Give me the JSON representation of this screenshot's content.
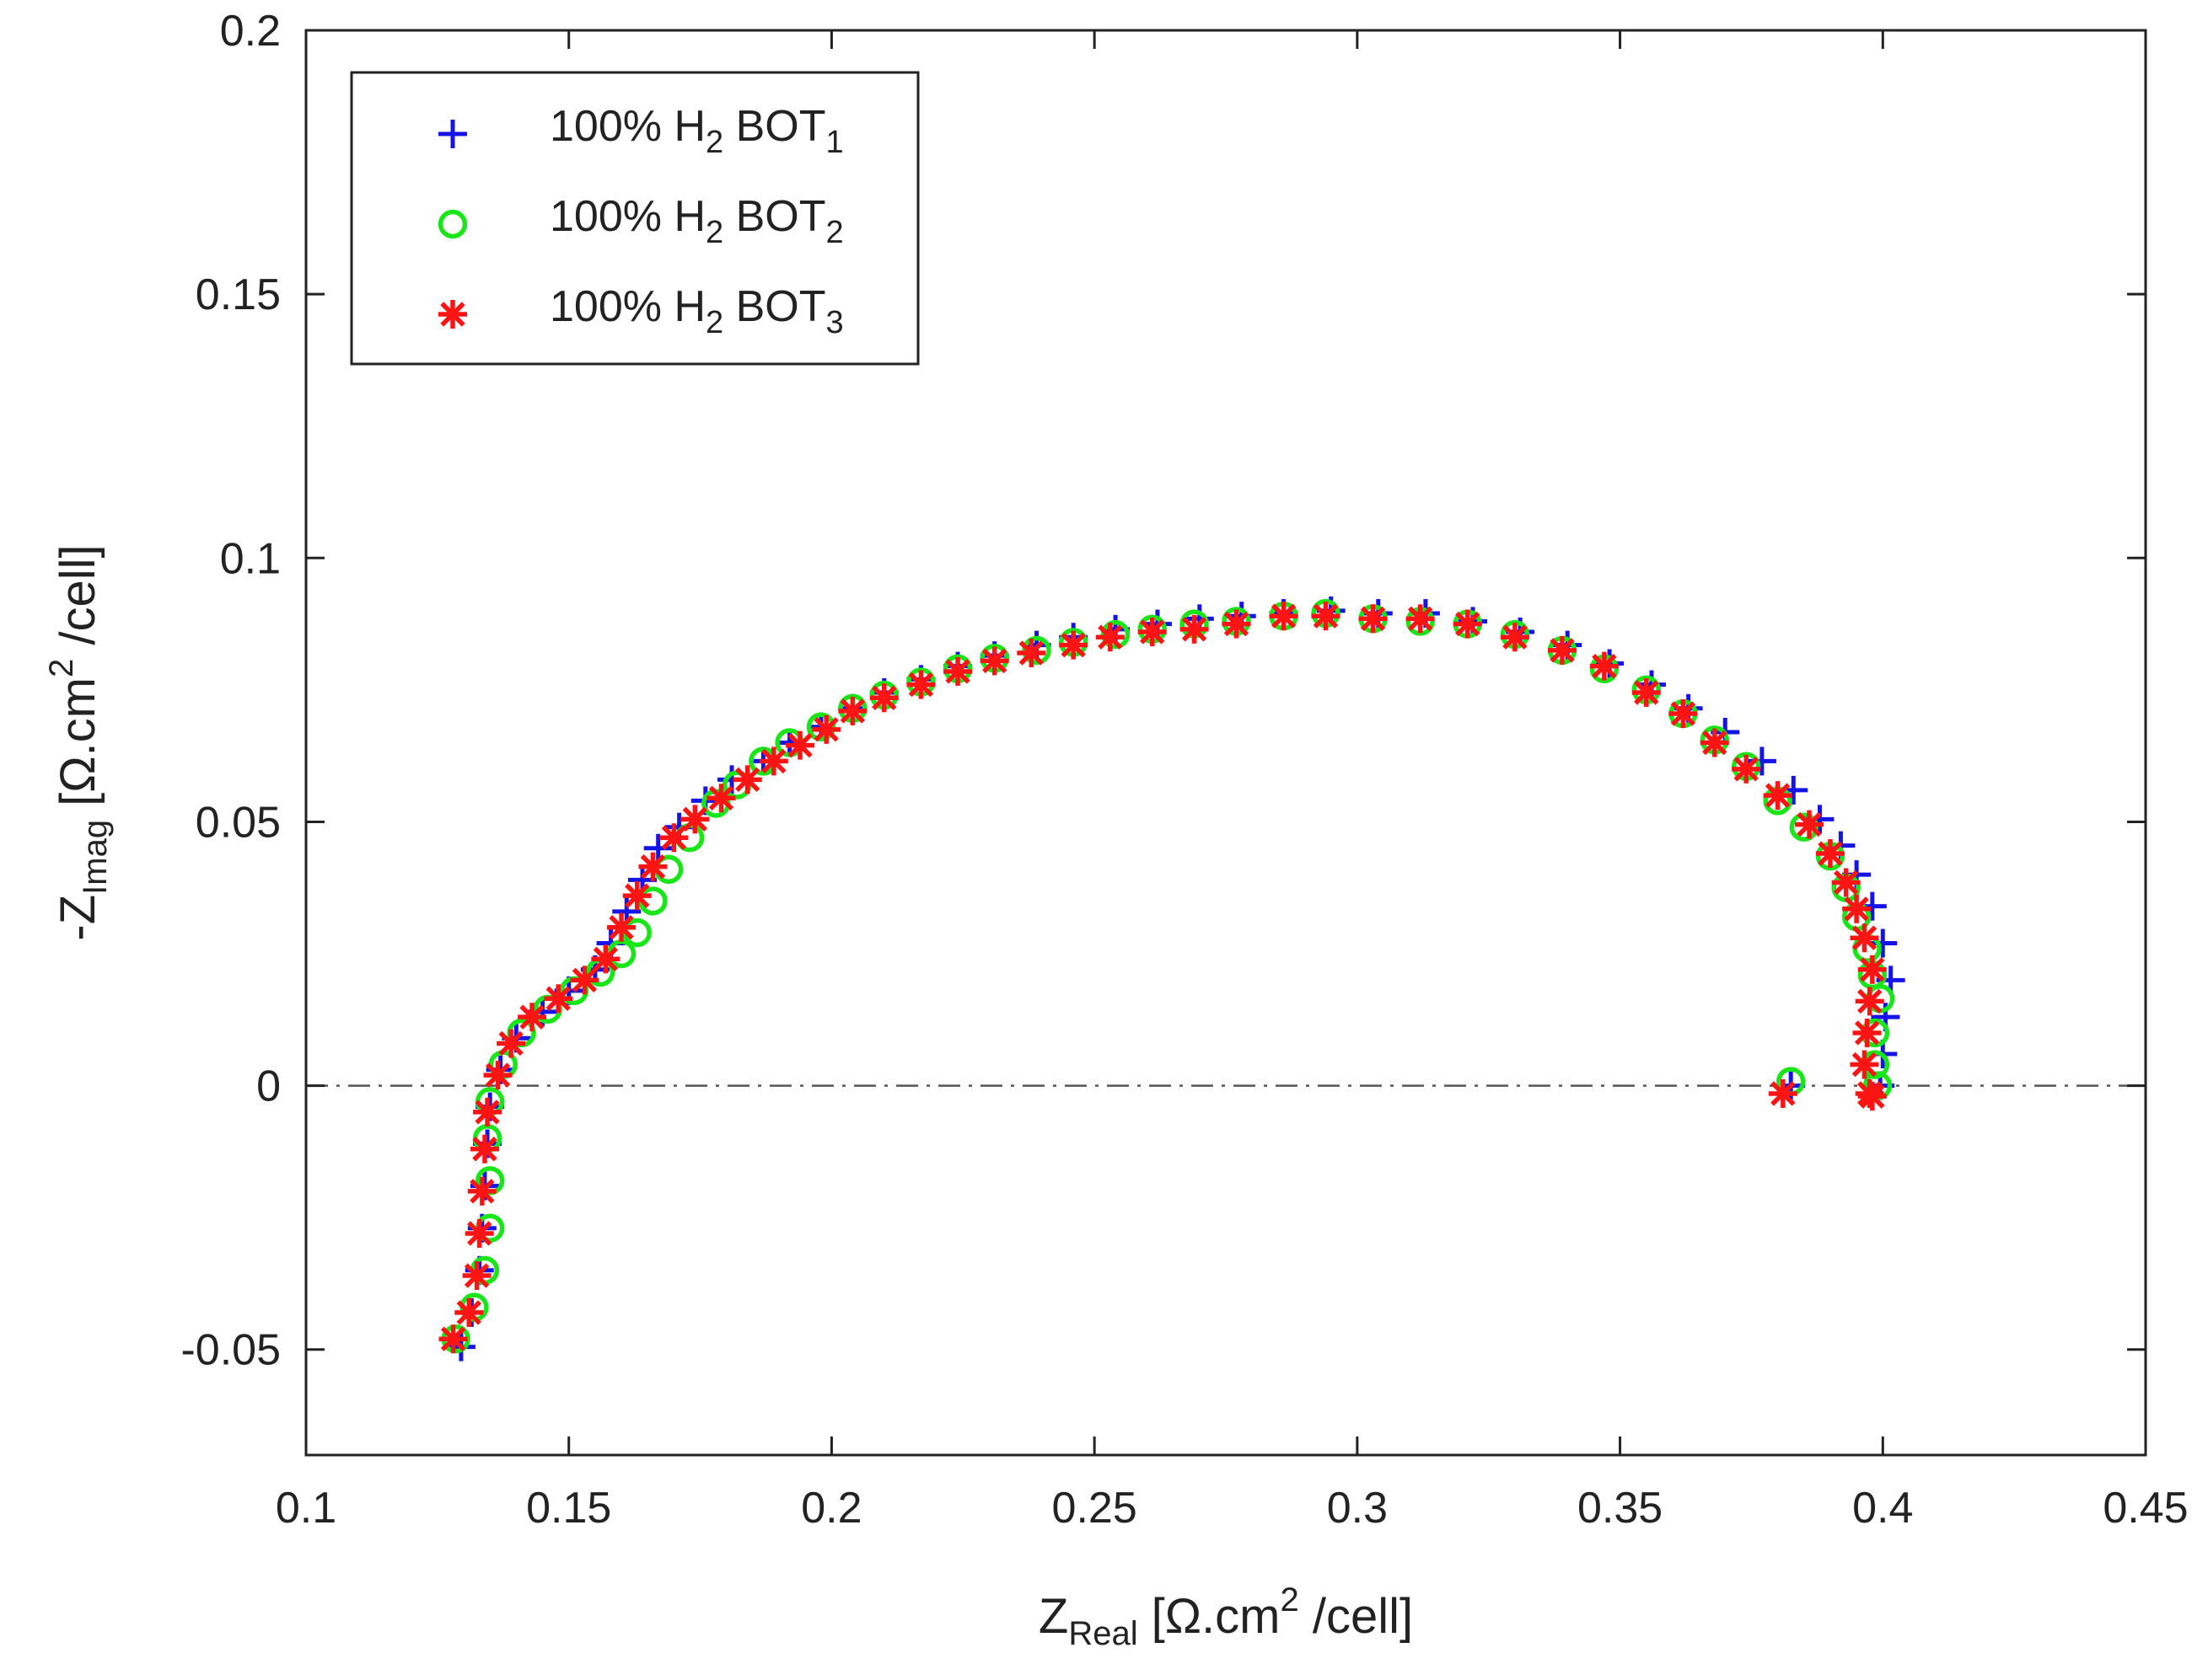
{
  "chart_data": {
    "type": "scatter",
    "title": "",
    "xlabel": {
      "main": "Z",
      "sub": "Real",
      "unit_pre": "[Ω.cm",
      "unit_sup": "2",
      "unit_post": " /cell]"
    },
    "ylabel": {
      "main": "-Z",
      "sub": "Imag",
      "unit_pre": "[Ω.cm",
      "unit_sup": "2",
      "unit_post": " /cell]"
    },
    "xlim": [
      0.1,
      0.45
    ],
    "ylim": [
      -0.07,
      0.2
    ],
    "xticks": [
      0.1,
      0.15,
      0.2,
      0.25,
      0.3,
      0.35,
      0.4,
      0.45
    ],
    "xtick_labels": [
      "0.1",
      "0.15",
      "0.2",
      "0.25",
      "0.3",
      "0.35",
      "0.4",
      "0.45"
    ],
    "yticks": [
      -0.05,
      0,
      0.05,
      0.1,
      0.15,
      0.2
    ],
    "ytick_labels": [
      "-0.05",
      "0",
      "0.05",
      "0.1",
      "0.15",
      "0.2"
    ],
    "zero_line": {
      "y": 0,
      "style": "dash-dot",
      "color": "#555555"
    },
    "legend_position": "top-left",
    "series": [
      {
        "name": "100% H2 BOT1",
        "label_parts": {
          "pre": "100% H",
          "sub1": "2",
          "mid": " BOT",
          "sub2": "1"
        },
        "marker": "plus",
        "color": "#1414e6",
        "points": [
          [
            0.1295,
            -0.0495
          ],
          [
            0.1315,
            -0.043
          ],
          [
            0.133,
            -0.035
          ],
          [
            0.1335,
            -0.027
          ],
          [
            0.134,
            -0.019
          ],
          [
            0.1345,
            -0.011
          ],
          [
            0.135,
            -0.004
          ],
          [
            0.137,
            0.003
          ],
          [
            0.14,
            0.009
          ],
          [
            0.145,
            0.014
          ],
          [
            0.15,
            0.018
          ],
          [
            0.155,
            0.022
          ],
          [
            0.158,
            0.027
          ],
          [
            0.161,
            0.033
          ],
          [
            0.164,
            0.039
          ],
          [
            0.167,
            0.045
          ],
          [
            0.171,
            0.049
          ],
          [
            0.176,
            0.054
          ],
          [
            0.181,
            0.058
          ],
          [
            0.187,
            0.0615
          ],
          [
            0.192,
            0.065
          ],
          [
            0.198,
            0.068
          ],
          [
            0.204,
            0.0715
          ],
          [
            0.21,
            0.0745
          ],
          [
            0.217,
            0.077
          ],
          [
            0.224,
            0.0795
          ],
          [
            0.231,
            0.0815
          ],
          [
            0.239,
            0.0835
          ],
          [
            0.246,
            0.085
          ],
          [
            0.254,
            0.0865
          ],
          [
            0.262,
            0.0875
          ],
          [
            0.27,
            0.0885
          ],
          [
            0.278,
            0.089
          ],
          [
            0.286,
            0.0895
          ],
          [
            0.295,
            0.09
          ],
          [
            0.304,
            0.0895
          ],
          [
            0.313,
            0.0895
          ],
          [
            0.322,
            0.088
          ],
          [
            0.331,
            0.086
          ],
          [
            0.34,
            0.0835
          ],
          [
            0.348,
            0.08
          ],
          [
            0.356,
            0.076
          ],
          [
            0.363,
            0.0715
          ],
          [
            0.37,
            0.067
          ],
          [
            0.377,
            0.0615
          ],
          [
            0.383,
            0.056
          ],
          [
            0.388,
            0.0505
          ],
          [
            0.392,
            0.0455
          ],
          [
            0.395,
            0.04
          ],
          [
            0.398,
            0.034
          ],
          [
            0.4,
            0.027
          ],
          [
            0.4015,
            0.02
          ],
          [
            0.4005,
            0.013
          ],
          [
            0.4,
            0.006
          ],
          [
            0.3995,
            0.0
          ],
          [
            0.398,
            -0.002
          ],
          [
            0.3825,
            0.0
          ]
        ]
      },
      {
        "name": "100% H2 BOT2",
        "label_parts": {
          "pre": "100% H",
          "sub1": "2",
          "mid": " BOT",
          "sub2": "2"
        },
        "marker": "circle",
        "color": "#19e619",
        "points": [
          [
            0.1285,
            -0.048
          ],
          [
            0.132,
            -0.042
          ],
          [
            0.134,
            -0.035
          ],
          [
            0.135,
            -0.027
          ],
          [
            0.135,
            -0.018
          ],
          [
            0.1345,
            -0.01
          ],
          [
            0.135,
            -0.003
          ],
          [
            0.1375,
            0.004
          ],
          [
            0.141,
            0.01
          ],
          [
            0.146,
            0.0145
          ],
          [
            0.151,
            0.018
          ],
          [
            0.156,
            0.0215
          ],
          [
            0.16,
            0.025
          ],
          [
            0.163,
            0.029
          ],
          [
            0.166,
            0.035
          ],
          [
            0.169,
            0.041
          ],
          [
            0.173,
            0.047
          ],
          [
            0.178,
            0.0535
          ],
          [
            0.182,
            0.057
          ],
          [
            0.187,
            0.0615
          ],
          [
            0.192,
            0.065
          ],
          [
            0.198,
            0.068
          ],
          [
            0.204,
            0.0715
          ],
          [
            0.21,
            0.074
          ],
          [
            0.217,
            0.0765
          ],
          [
            0.224,
            0.079
          ],
          [
            0.231,
            0.081
          ],
          [
            0.239,
            0.0825
          ],
          [
            0.246,
            0.084
          ],
          [
            0.254,
            0.0855
          ],
          [
            0.261,
            0.0865
          ],
          [
            0.269,
            0.0875
          ],
          [
            0.277,
            0.088
          ],
          [
            0.286,
            0.089
          ],
          [
            0.294,
            0.0895
          ],
          [
            0.303,
            0.0885
          ],
          [
            0.312,
            0.088
          ],
          [
            0.321,
            0.0875
          ],
          [
            0.33,
            0.0855
          ],
          [
            0.339,
            0.0825
          ],
          [
            0.347,
            0.079
          ],
          [
            0.355,
            0.075
          ],
          [
            0.362,
            0.0705
          ],
          [
            0.368,
            0.0655
          ],
          [
            0.374,
            0.0605
          ],
          [
            0.38,
            0.054
          ],
          [
            0.385,
            0.049
          ],
          [
            0.39,
            0.0435
          ],
          [
            0.393,
            0.0375
          ],
          [
            0.395,
            0.032
          ],
          [
            0.397,
            0.026
          ],
          [
            0.398,
            0.021
          ],
          [
            0.3995,
            0.0165
          ],
          [
            0.3985,
            0.01
          ],
          [
            0.3985,
            0.004
          ],
          [
            0.399,
            0.0
          ],
          [
            0.3825,
            0.0008
          ]
        ]
      },
      {
        "name": "100% H2 BOT3",
        "label_parts": {
          "pre": "100% H",
          "sub1": "2",
          "mid": " BOT",
          "sub2": "3"
        },
        "marker": "asterisk",
        "color": "#ff1414",
        "points": [
          [
            0.128,
            -0.048
          ],
          [
            0.131,
            -0.043
          ],
          [
            0.1325,
            -0.036
          ],
          [
            0.133,
            -0.028
          ],
          [
            0.1335,
            -0.02
          ],
          [
            0.134,
            -0.012
          ],
          [
            0.1345,
            -0.005
          ],
          [
            0.1365,
            0.002
          ],
          [
            0.139,
            0.008
          ],
          [
            0.143,
            0.013
          ],
          [
            0.148,
            0.0165
          ],
          [
            0.153,
            0.02
          ],
          [
            0.157,
            0.024
          ],
          [
            0.16,
            0.03
          ],
          [
            0.163,
            0.036
          ],
          [
            0.166,
            0.0415
          ],
          [
            0.17,
            0.047
          ],
          [
            0.174,
            0.0505
          ],
          [
            0.179,
            0.0545
          ],
          [
            0.184,
            0.058
          ],
          [
            0.189,
            0.0615
          ],
          [
            0.194,
            0.0645
          ],
          [
            0.199,
            0.0675
          ],
          [
            0.204,
            0.071
          ],
          [
            0.21,
            0.0735
          ],
          [
            0.217,
            0.076
          ],
          [
            0.224,
            0.0785
          ],
          [
            0.231,
            0.0805
          ],
          [
            0.238,
            0.082
          ],
          [
            0.246,
            0.0835
          ],
          [
            0.253,
            0.085
          ],
          [
            0.261,
            0.086
          ],
          [
            0.269,
            0.0865
          ],
          [
            0.277,
            0.0875
          ],
          [
            0.286,
            0.089
          ],
          [
            0.294,
            0.089
          ],
          [
            0.303,
            0.0885
          ],
          [
            0.312,
            0.0885
          ],
          [
            0.321,
            0.0875
          ],
          [
            0.33,
            0.085
          ],
          [
            0.339,
            0.0825
          ],
          [
            0.347,
            0.0795
          ],
          [
            0.355,
            0.0745
          ],
          [
            0.362,
            0.0705
          ],
          [
            0.368,
            0.065
          ],
          [
            0.374,
            0.06
          ],
          [
            0.38,
            0.055
          ],
          [
            0.386,
            0.0495
          ],
          [
            0.39,
            0.044
          ],
          [
            0.393,
            0.0385
          ],
          [
            0.395,
            0.0335
          ],
          [
            0.3965,
            0.028
          ],
          [
            0.398,
            0.022
          ],
          [
            0.3975,
            0.016
          ],
          [
            0.397,
            0.01
          ],
          [
            0.3965,
            0.004
          ],
          [
            0.3975,
            -0.0015
          ],
          [
            0.398,
            -0.002
          ],
          [
            0.381,
            -0.0015
          ]
        ]
      }
    ]
  }
}
